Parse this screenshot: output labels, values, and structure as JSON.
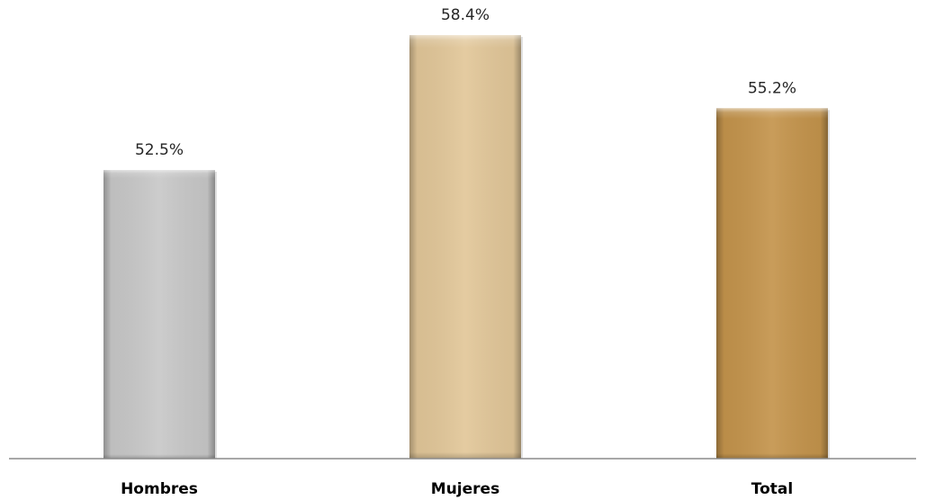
{
  "chart_data": {
    "type": "bar",
    "categories": [
      "Hombres",
      "Mujeres",
      "Total"
    ],
    "values": [
      52.5,
      58.4,
      55.2
    ],
    "value_labels": [
      "52.5%",
      "58.4%",
      "55.2%"
    ],
    "colors": [
      "#c8c8c8",
      "#e2c799",
      "#c4944c"
    ],
    "title": "",
    "xlabel": "",
    "ylabel": "",
    "grid": false,
    "legend": "none"
  }
}
